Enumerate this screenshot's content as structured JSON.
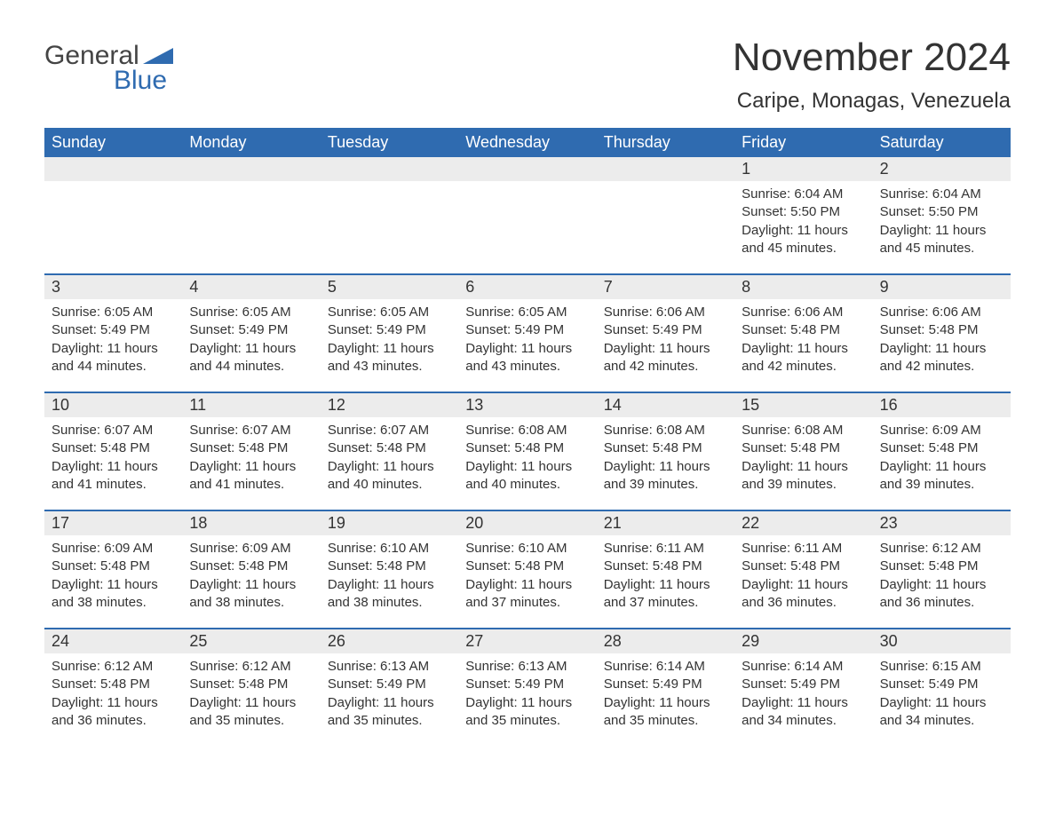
{
  "brand": {
    "word1": "General",
    "word2": "Blue",
    "tri_color": "#2f6bb0"
  },
  "title": "November 2024",
  "location": "Caripe, Monagas, Venezuela",
  "colors": {
    "header_bg": "#2f6bb0",
    "header_text": "#ffffff",
    "daynum_bg": "#ececec",
    "week_top_border": "#2f6bb0",
    "body_text": "#333333",
    "page_bg": "#ffffff"
  },
  "typography": {
    "title_fontsize": 44,
    "location_fontsize": 24,
    "dow_fontsize": 18,
    "daynum_fontsize": 18,
    "body_fontsize": 15,
    "font_family": "Arial"
  },
  "layout": {
    "columns": 7,
    "rows": 5,
    "first_weekday_index": 5
  },
  "dow": [
    "Sunday",
    "Monday",
    "Tuesday",
    "Wednesday",
    "Thursday",
    "Friday",
    "Saturday"
  ],
  "weeks": [
    [
      null,
      null,
      null,
      null,
      null,
      {
        "n": "1",
        "sunrise": "Sunrise: 6:04 AM",
        "sunset": "Sunset: 5:50 PM",
        "daylight": "Daylight: 11 hours and 45 minutes."
      },
      {
        "n": "2",
        "sunrise": "Sunrise: 6:04 AM",
        "sunset": "Sunset: 5:50 PM",
        "daylight": "Daylight: 11 hours and 45 minutes."
      }
    ],
    [
      {
        "n": "3",
        "sunrise": "Sunrise: 6:05 AM",
        "sunset": "Sunset: 5:49 PM",
        "daylight": "Daylight: 11 hours and 44 minutes."
      },
      {
        "n": "4",
        "sunrise": "Sunrise: 6:05 AM",
        "sunset": "Sunset: 5:49 PM",
        "daylight": "Daylight: 11 hours and 44 minutes."
      },
      {
        "n": "5",
        "sunrise": "Sunrise: 6:05 AM",
        "sunset": "Sunset: 5:49 PM",
        "daylight": "Daylight: 11 hours and 43 minutes."
      },
      {
        "n": "6",
        "sunrise": "Sunrise: 6:05 AM",
        "sunset": "Sunset: 5:49 PM",
        "daylight": "Daylight: 11 hours and 43 minutes."
      },
      {
        "n": "7",
        "sunrise": "Sunrise: 6:06 AM",
        "sunset": "Sunset: 5:49 PM",
        "daylight": "Daylight: 11 hours and 42 minutes."
      },
      {
        "n": "8",
        "sunrise": "Sunrise: 6:06 AM",
        "sunset": "Sunset: 5:48 PM",
        "daylight": "Daylight: 11 hours and 42 minutes."
      },
      {
        "n": "9",
        "sunrise": "Sunrise: 6:06 AM",
        "sunset": "Sunset: 5:48 PM",
        "daylight": "Daylight: 11 hours and 42 minutes."
      }
    ],
    [
      {
        "n": "10",
        "sunrise": "Sunrise: 6:07 AM",
        "sunset": "Sunset: 5:48 PM",
        "daylight": "Daylight: 11 hours and 41 minutes."
      },
      {
        "n": "11",
        "sunrise": "Sunrise: 6:07 AM",
        "sunset": "Sunset: 5:48 PM",
        "daylight": "Daylight: 11 hours and 41 minutes."
      },
      {
        "n": "12",
        "sunrise": "Sunrise: 6:07 AM",
        "sunset": "Sunset: 5:48 PM",
        "daylight": "Daylight: 11 hours and 40 minutes."
      },
      {
        "n": "13",
        "sunrise": "Sunrise: 6:08 AM",
        "sunset": "Sunset: 5:48 PM",
        "daylight": "Daylight: 11 hours and 40 minutes."
      },
      {
        "n": "14",
        "sunrise": "Sunrise: 6:08 AM",
        "sunset": "Sunset: 5:48 PM",
        "daylight": "Daylight: 11 hours and 39 minutes."
      },
      {
        "n": "15",
        "sunrise": "Sunrise: 6:08 AM",
        "sunset": "Sunset: 5:48 PM",
        "daylight": "Daylight: 11 hours and 39 minutes."
      },
      {
        "n": "16",
        "sunrise": "Sunrise: 6:09 AM",
        "sunset": "Sunset: 5:48 PM",
        "daylight": "Daylight: 11 hours and 39 minutes."
      }
    ],
    [
      {
        "n": "17",
        "sunrise": "Sunrise: 6:09 AM",
        "sunset": "Sunset: 5:48 PM",
        "daylight": "Daylight: 11 hours and 38 minutes."
      },
      {
        "n": "18",
        "sunrise": "Sunrise: 6:09 AM",
        "sunset": "Sunset: 5:48 PM",
        "daylight": "Daylight: 11 hours and 38 minutes."
      },
      {
        "n": "19",
        "sunrise": "Sunrise: 6:10 AM",
        "sunset": "Sunset: 5:48 PM",
        "daylight": "Daylight: 11 hours and 38 minutes."
      },
      {
        "n": "20",
        "sunrise": "Sunrise: 6:10 AM",
        "sunset": "Sunset: 5:48 PM",
        "daylight": "Daylight: 11 hours and 37 minutes."
      },
      {
        "n": "21",
        "sunrise": "Sunrise: 6:11 AM",
        "sunset": "Sunset: 5:48 PM",
        "daylight": "Daylight: 11 hours and 37 minutes."
      },
      {
        "n": "22",
        "sunrise": "Sunrise: 6:11 AM",
        "sunset": "Sunset: 5:48 PM",
        "daylight": "Daylight: 11 hours and 36 minutes."
      },
      {
        "n": "23",
        "sunrise": "Sunrise: 6:12 AM",
        "sunset": "Sunset: 5:48 PM",
        "daylight": "Daylight: 11 hours and 36 minutes."
      }
    ],
    [
      {
        "n": "24",
        "sunrise": "Sunrise: 6:12 AM",
        "sunset": "Sunset: 5:48 PM",
        "daylight": "Daylight: 11 hours and 36 minutes."
      },
      {
        "n": "25",
        "sunrise": "Sunrise: 6:12 AM",
        "sunset": "Sunset: 5:48 PM",
        "daylight": "Daylight: 11 hours and 35 minutes."
      },
      {
        "n": "26",
        "sunrise": "Sunrise: 6:13 AM",
        "sunset": "Sunset: 5:49 PM",
        "daylight": "Daylight: 11 hours and 35 minutes."
      },
      {
        "n": "27",
        "sunrise": "Sunrise: 6:13 AM",
        "sunset": "Sunset: 5:49 PM",
        "daylight": "Daylight: 11 hours and 35 minutes."
      },
      {
        "n": "28",
        "sunrise": "Sunrise: 6:14 AM",
        "sunset": "Sunset: 5:49 PM",
        "daylight": "Daylight: 11 hours and 35 minutes."
      },
      {
        "n": "29",
        "sunrise": "Sunrise: 6:14 AM",
        "sunset": "Sunset: 5:49 PM",
        "daylight": "Daylight: 11 hours and 34 minutes."
      },
      {
        "n": "30",
        "sunrise": "Sunrise: 6:15 AM",
        "sunset": "Sunset: 5:49 PM",
        "daylight": "Daylight: 11 hours and 34 minutes."
      }
    ]
  ]
}
